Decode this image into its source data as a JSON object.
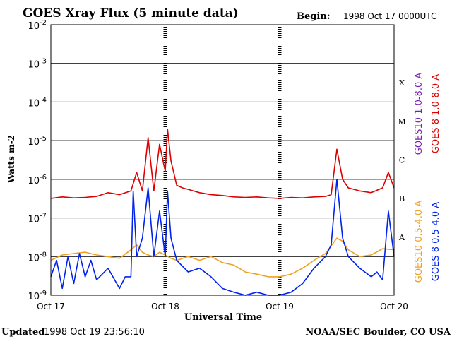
{
  "header": {
    "title": "GOES Xray Flux (5 minute data)",
    "begin_label": "Begin:",
    "begin_value": "1998 Oct 17 0000UTC"
  },
  "footer": {
    "updated_label": "Updated",
    "updated_value": "1998 Oct 19 23:56:10",
    "credit": "NOAA/SEC Boulder, CO USA"
  },
  "chart_data": {
    "type": "line",
    "title": "GOES Xray Flux (5 minute data)",
    "xlabel": "Universal Time",
    "ylabel": "Watts m-2",
    "yscale": "log",
    "ylim": [
      1e-09,
      0.01
    ],
    "xlim": [
      0,
      3
    ],
    "grid": true,
    "x_ticks": [
      {
        "x": 0,
        "label": "Oct 17"
      },
      {
        "x": 1,
        "label": "Oct 18"
      },
      {
        "x": 2,
        "label": "Oct 19"
      },
      {
        "x": 3,
        "label": "Oct 20"
      }
    ],
    "y_ticks": [
      {
        "base": "10",
        "exp": "-2",
        "value": 0.01
      },
      {
        "base": "10",
        "exp": "-3",
        "value": 0.001
      },
      {
        "base": "10",
        "exp": "-4",
        "value": 0.0001
      },
      {
        "base": "10",
        "exp": "-5",
        "value": 1e-05
      },
      {
        "base": "10",
        "exp": "-6",
        "value": 1e-06
      },
      {
        "base": "10",
        "exp": "-7",
        "value": 1e-07
      },
      {
        "base": "10",
        "exp": "-8",
        "value": 1e-08
      },
      {
        "base": "10",
        "exp": "-9",
        "value": 1e-09
      }
    ],
    "flare_classes": [
      {
        "label": "X",
        "value": 0.0001
      },
      {
        "label": "M",
        "value": 1e-05
      },
      {
        "label": "C",
        "value": 1e-06
      },
      {
        "label": "B",
        "value": 1e-07
      },
      {
        "label": "A",
        "value": 1e-08
      }
    ],
    "legend_placement": "right",
    "series": [
      {
        "name": "GOES 8 1.0-8.0 A",
        "color": "#dd0000",
        "x": [
          0,
          0.1,
          0.2,
          0.3,
          0.4,
          0.5,
          0.6,
          0.7,
          0.75,
          0.8,
          0.85,
          0.9,
          0.95,
          1.0,
          1.02,
          1.05,
          1.1,
          1.15,
          1.2,
          1.3,
          1.4,
          1.5,
          1.6,
          1.7,
          1.8,
          1.9,
          2.0,
          2.1,
          2.2,
          2.3,
          2.4,
          2.45,
          2.5,
          2.55,
          2.6,
          2.7,
          2.8,
          2.9,
          2.95,
          3.0
        ],
        "y": [
          3.2e-07,
          3.5e-07,
          3.3e-07,
          3.4e-07,
          3.6e-07,
          4.5e-07,
          4e-07,
          5e-07,
          1.5e-06,
          5e-07,
          1.2e-05,
          5e-07,
          8e-06,
          1.6e-06,
          2e-05,
          3e-06,
          7e-07,
          6e-07,
          5.5e-07,
          4.5e-07,
          4e-07,
          3.8e-07,
          3.5e-07,
          3.4e-07,
          3.5e-07,
          3.3e-07,
          3.2e-07,
          3.4e-07,
          3.3e-07,
          3.5e-07,
          3.6e-07,
          4e-07,
          6e-06,
          1e-06,
          6e-07,
          5e-07,
          4.5e-07,
          6e-07,
          1.5e-06,
          6e-07
        ]
      },
      {
        "name": "GOES10 1.0-8.0 A",
        "color": "#7a1fb5",
        "x": [],
        "y": []
      },
      {
        "name": "GOES 8 0.5-4.0 A",
        "color": "#0022ee",
        "x": [
          0,
          0.05,
          0.1,
          0.15,
          0.2,
          0.25,
          0.3,
          0.35,
          0.4,
          0.5,
          0.6,
          0.65,
          0.7,
          0.72,
          0.75,
          0.8,
          0.85,
          0.9,
          0.95,
          1.0,
          1.02,
          1.05,
          1.1,
          1.2,
          1.3,
          1.4,
          1.5,
          1.6,
          1.7,
          1.8,
          1.9,
          2.0,
          2.1,
          2.2,
          2.3,
          2.4,
          2.45,
          2.5,
          2.55,
          2.6,
          2.7,
          2.8,
          2.85,
          2.9,
          2.95,
          3.0
        ],
        "y": [
          3e-09,
          8e-09,
          1.5e-09,
          1e-08,
          2e-09,
          1.2e-08,
          3e-09,
          8e-09,
          2.5e-09,
          5e-09,
          1.5e-09,
          3e-09,
          3e-09,
          5e-07,
          1e-08,
          3e-08,
          6e-07,
          1e-08,
          1.5e-07,
          1e-08,
          5e-07,
          3e-08,
          8e-09,
          4e-09,
          5e-09,
          3e-09,
          1.5e-09,
          1.2e-09,
          1e-09,
          1.2e-09,
          1e-09,
          1e-09,
          1.2e-09,
          2e-09,
          5e-09,
          1e-08,
          2e-08,
          1e-06,
          3e-08,
          1e-08,
          5e-09,
          3e-09,
          4e-09,
          2.5e-09,
          1.5e-07,
          1e-08
        ]
      },
      {
        "name": "GOES10 0.5-4.0 A",
        "color": "#f0a020",
        "x": [
          0,
          0.1,
          0.2,
          0.3,
          0.4,
          0.5,
          0.6,
          0.7,
          0.75,
          0.8,
          0.85,
          0.9,
          0.95,
          1.0,
          1.05,
          1.1,
          1.2,
          1.3,
          1.4,
          1.5,
          1.6,
          1.7,
          1.8,
          1.9,
          2.0,
          2.1,
          2.2,
          2.3,
          2.4,
          2.5,
          2.55,
          2.6,
          2.7,
          2.8,
          2.9,
          3.0
        ],
        "y": [
          8e-09,
          1.1e-08,
          1.2e-08,
          1.3e-08,
          1.1e-08,
          1e-08,
          9e-09,
          1.5e-08,
          2e-08,
          1.3e-08,
          1.1e-08,
          1e-08,
          1.3e-08,
          1.1e-08,
          9e-09,
          8e-09,
          1e-08,
          8e-09,
          1e-08,
          7e-09,
          6e-09,
          4e-09,
          3.5e-09,
          3e-09,
          3e-09,
          3.5e-09,
          5e-09,
          8e-09,
          1.2e-08,
          3e-08,
          2.5e-08,
          1.5e-08,
          1e-08,
          1.1e-08,
          1.6e-08,
          1.5e-08
        ]
      }
    ]
  }
}
